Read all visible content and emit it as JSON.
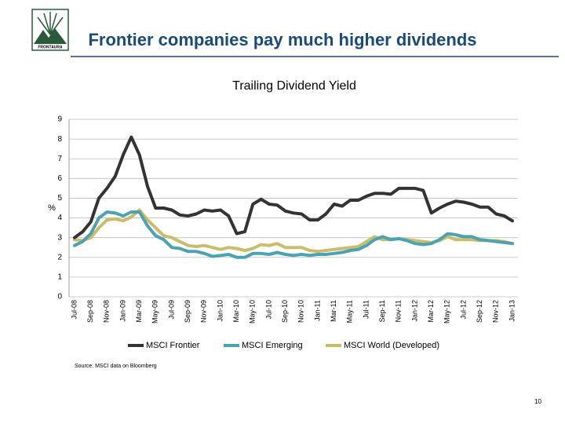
{
  "logo_text": "FRONTAURA",
  "slide_title": "Frontier companies pay much higher dividends",
  "source": "Source: MSCI data on Bloomberg",
  "page_number": "10",
  "chart_data": {
    "type": "line",
    "title": "Trailing Dividend Yield",
    "y_label": "%",
    "categories": [
      "Jul-08",
      null,
      "Sep-08",
      null,
      "Nov-08",
      null,
      "Jan-09",
      null,
      "Mar-09",
      null,
      "May-09",
      null,
      "Jul-09",
      null,
      "Sep-09",
      null,
      "Nov-09",
      null,
      "Jan-10",
      null,
      "Mar-10",
      null,
      "May-10",
      null,
      "Jul-10",
      null,
      "Sep-10",
      null,
      "Nov-10",
      null,
      "Jan-11",
      null,
      "Mar-11",
      null,
      "May-11",
      null,
      "Jul-11",
      null,
      "Sep-11",
      null,
      "Nov-11",
      null,
      "Jan-12",
      null,
      "Mar-12",
      null,
      "May-12",
      null,
      "Jul-12",
      null,
      "Sep-12",
      null,
      "Nov-12",
      null,
      "Jan-13"
    ],
    "series": [
      {
        "name": "MSCI Frontier",
        "color": "#333333",
        "values": [
          3.0,
          3.3,
          3.8,
          5.0,
          5.5,
          6.1,
          7.2,
          8.1,
          7.2,
          5.6,
          4.5,
          4.5,
          4.4,
          4.15,
          4.1,
          4.2,
          4.4,
          4.35,
          4.4,
          4.1,
          3.2,
          3.3,
          4.7,
          4.95,
          4.7,
          4.65,
          4.35,
          4.25,
          4.2,
          3.9,
          3.9,
          4.2,
          4.7,
          4.6,
          4.9,
          4.9,
          5.1,
          5.25,
          5.25,
          5.2,
          5.5,
          5.5,
          5.5,
          5.4,
          4.25,
          4.5,
          4.7,
          4.85,
          4.8,
          4.7,
          4.55,
          4.55,
          4.2,
          4.1,
          3.85
        ]
      },
      {
        "name": "MSCI Emerging",
        "color": "#4ba3b1",
        "values": [
          2.6,
          2.8,
          3.2,
          4.0,
          4.3,
          4.25,
          4.1,
          4.3,
          4.3,
          3.6,
          3.1,
          2.9,
          2.5,
          2.45,
          2.3,
          2.3,
          2.2,
          2.05,
          2.1,
          2.15,
          2.0,
          2.0,
          2.2,
          2.2,
          2.15,
          2.25,
          2.15,
          2.1,
          2.15,
          2.1,
          2.15,
          2.15,
          2.2,
          2.25,
          2.35,
          2.4,
          2.6,
          2.9,
          3.05,
          2.9,
          2.95,
          2.85,
          2.7,
          2.65,
          2.7,
          2.9,
          3.2,
          3.15,
          3.05,
          3.05,
          2.9,
          2.85,
          2.8,
          2.75,
          2.7
        ]
      },
      {
        "name": "MSCI World (Developed)",
        "color": "#c9bd6c",
        "values": [
          2.9,
          2.85,
          3.0,
          3.5,
          3.9,
          3.95,
          3.85,
          4.05,
          4.4,
          3.9,
          3.5,
          3.1,
          3.0,
          2.8,
          2.6,
          2.55,
          2.6,
          2.5,
          2.4,
          2.5,
          2.45,
          2.35,
          2.45,
          2.65,
          2.6,
          2.7,
          2.5,
          2.5,
          2.5,
          2.35,
          2.3,
          2.35,
          2.4,
          2.45,
          2.5,
          2.55,
          2.8,
          3.05,
          2.9,
          2.9,
          2.95,
          2.9,
          2.85,
          2.8,
          2.75,
          2.85,
          3.05,
          2.9,
          2.9,
          2.9,
          2.85,
          2.85,
          2.85,
          2.8,
          2.7
        ]
      }
    ],
    "ylim": [
      0,
      9
    ],
    "yticks": [
      0,
      1,
      2,
      3,
      4,
      5,
      6,
      7,
      8,
      9
    ],
    "grid": true,
    "legend": "bottom"
  }
}
